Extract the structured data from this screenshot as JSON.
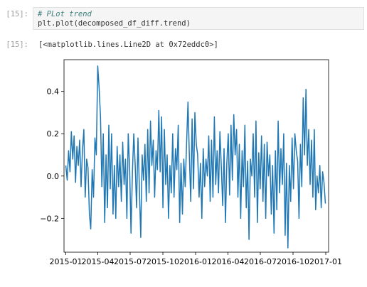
{
  "cells": [
    {
      "prompt": "[15]:",
      "comment": "# PLot trend",
      "code": "plt.plot(decomposed_df_diff.trend)"
    }
  ],
  "output": {
    "prompt": "[15]:",
    "text": "[<matplotlib.lines.Line2D at 0x72eddc0>]"
  },
  "chart_data": {
    "type": "line",
    "title": "",
    "xlabel": "",
    "ylabel": "",
    "series_color": "#1f77b4",
    "x_ticks": [
      "2015-01",
      "2015-04",
      "2015-07",
      "2015-10",
      "2016-01",
      "2016-04",
      "2016-07",
      "2016-10",
      "2017-01"
    ],
    "y_ticks": [
      -0.2,
      0.0,
      0.2,
      0.4
    ],
    "ylim": [
      -0.36,
      0.55
    ],
    "xlim": [
      "2014-12-27",
      "2017-01-09"
    ],
    "series": [
      {
        "x_start": "2015-01-01",
        "x_end": "2016-12-31",
        "values": [
          0.05,
          -0.02,
          0.12,
          0.02,
          0.21,
          0.08,
          0.19,
          -0.03,
          0.14,
          0.05,
          0.17,
          -0.05,
          0.12,
          0.22,
          -0.1,
          0.08,
          0.04,
          -0.18,
          -0.25,
          0.03,
          -0.1,
          0.18,
          0.1,
          0.52,
          0.42,
          0.28,
          -0.05,
          0.2,
          -0.22,
          0.1,
          -0.15,
          0.24,
          -0.06,
          0.2,
          -0.18,
          0.05,
          -0.2,
          0.14,
          -0.05,
          0.1,
          -0.12,
          0.16,
          -0.04,
          0.08,
          -0.2,
          0.2,
          0.03,
          -0.27,
          0.02,
          0.2,
          0.05,
          -0.15,
          0.18,
          -0.05,
          -0.29,
          0.1,
          -0.02,
          0.15,
          -0.12,
          0.22,
          -0.08,
          0.26,
          0.05,
          0.17,
          -0.1,
          0.12,
          0.03,
          0.31,
          0.02,
          0.28,
          -0.15,
          0.22,
          -0.04,
          0.1,
          -0.2,
          0.05,
          -0.08,
          0.2,
          -0.1,
          0.13,
          0.03,
          0.24,
          -0.22,
          0.06,
          -0.18,
          0.08,
          -0.05,
          0.15,
          0.35,
          0.1,
          -0.12,
          0.27,
          -0.06,
          0.3,
          0.15,
          0.1,
          -0.1,
          0.06,
          -0.2,
          0.13,
          -0.05,
          0.08,
          0.0,
          0.19,
          -0.12,
          0.17,
          -0.1,
          0.28,
          -0.04,
          0.12,
          -0.08,
          0.21,
          0.05,
          -0.14,
          0.13,
          -0.22,
          0.06,
          0.2,
          -0.09,
          0.24,
          -0.02,
          0.29,
          0.1,
          0.22,
          -0.1,
          0.15,
          -0.2,
          0.12,
          -0.05,
          0.24,
          -0.15,
          0.07,
          -0.3,
          0.08,
          0.0,
          0.2,
          -0.1,
          0.26,
          -0.22,
          0.11,
          -0.06,
          0.19,
          -0.12,
          0.15,
          -0.2,
          0.16,
          0.0,
          0.1,
          -0.18,
          0.05,
          -0.27,
          0.12,
          -0.16,
          0.26,
          -0.08,
          0.13,
          -0.04,
          0.2,
          -0.28,
          0.06,
          -0.34,
          0.05,
          -0.12,
          0.18,
          -0.06,
          0.2,
          0.12,
          0.07,
          -0.2,
          0.15,
          -0.05,
          0.37,
          0.1,
          0.41,
          0.05,
          0.22,
          -0.04,
          0.17,
          -0.1,
          0.22,
          -0.16,
          0.0,
          -0.08,
          0.05,
          -0.15,
          0.02,
          -0.03,
          -0.13
        ]
      }
    ]
  }
}
